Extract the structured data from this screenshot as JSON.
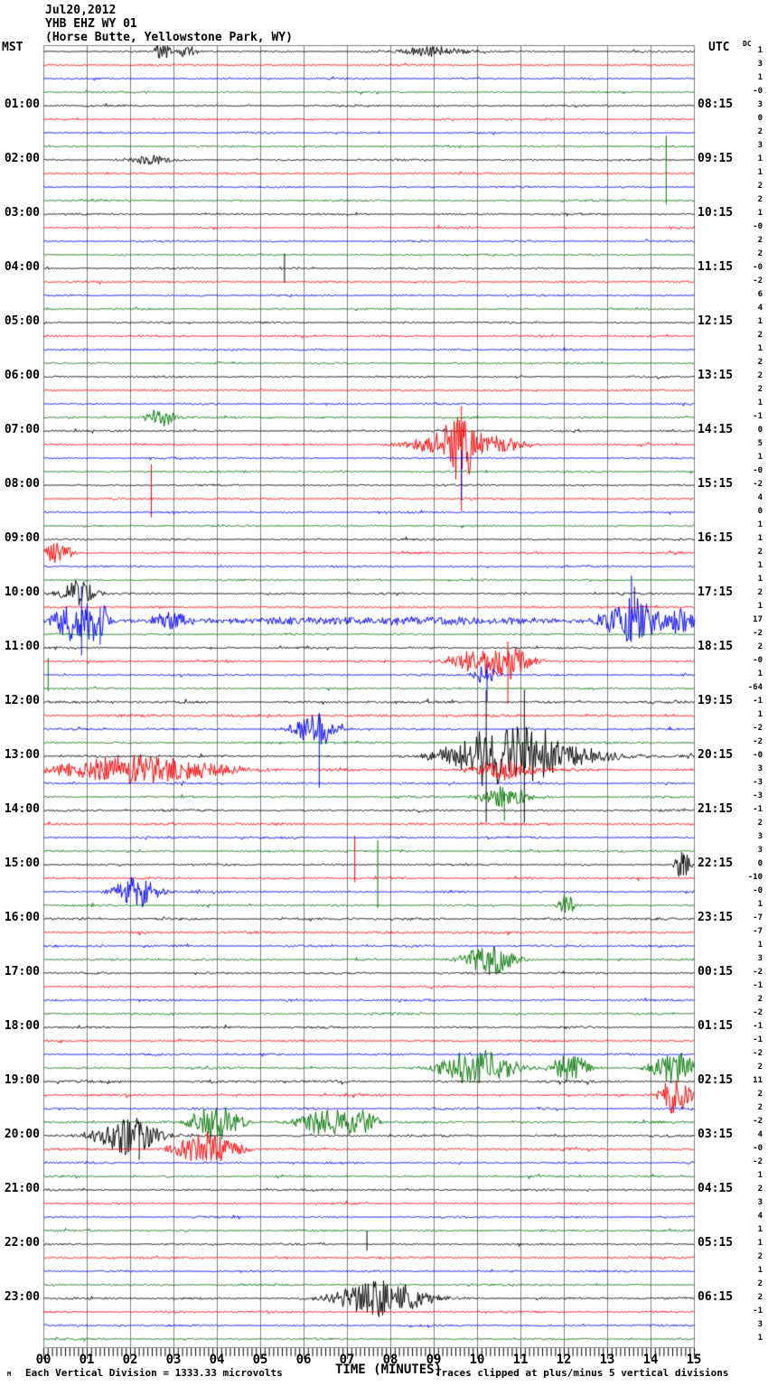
{
  "header": {
    "date": "Jul20,2012",
    "station": "YHB EHZ WY 01",
    "location": "(Horse Butte, Yellowstone Park, WY)"
  },
  "corners": {
    "left_timezone": "MST",
    "right_timezone": "UTC",
    "dc_header": "DC"
  },
  "footer": {
    "mark": "M",
    "division_note": "Each Vertical Division = 1333.33 microvolts",
    "axis_title": "TIME (MINUTES)",
    "clip_note": "Traces clipped at plus/minus 5 vertical divisions"
  },
  "left_time_labels": [
    "01:00",
    "02:00",
    "03:00",
    "04:00",
    "05:00",
    "06:00",
    "07:00",
    "08:00",
    "09:00",
    "10:00",
    "11:00",
    "12:00",
    "13:00",
    "14:00",
    "15:00",
    "16:00",
    "17:00",
    "18:00",
    "19:00",
    "20:00",
    "21:00",
    "22:00",
    "23:00"
  ],
  "right_time_labels": [
    "08:15",
    "09:15",
    "10:15",
    "11:15",
    "12:15",
    "13:15",
    "14:15",
    "15:15",
    "16:15",
    "17:15",
    "18:15",
    "19:15",
    "20:15",
    "21:15",
    "22:15",
    "23:15",
    "00:15",
    "01:15",
    "02:15",
    "03:15",
    "04:15",
    "05:15",
    "06:15"
  ],
  "dc_values": [
    "1",
    "3",
    "1",
    "-0",
    "3",
    "0",
    "2",
    "3",
    "1",
    "1",
    "2",
    "2",
    "1",
    "-0",
    "2",
    "2",
    "-0",
    "-2",
    "6",
    "4",
    "1",
    "2",
    "1",
    "2",
    "2",
    "2",
    "1",
    "-1",
    "0",
    "5",
    "1",
    "-0",
    "-2",
    "4",
    "0",
    "1",
    "1",
    "2",
    "1",
    "1",
    "2",
    "1",
    "17",
    "-2",
    "2",
    "-0",
    "1",
    "-64",
    "-1",
    "1",
    "-2",
    "-2",
    "-0",
    "3",
    "-3",
    "-3",
    "-1",
    "2",
    "3",
    "3",
    "0",
    "-10",
    "-0",
    "1",
    "-7",
    "-7",
    "1",
    "3",
    "-2",
    "-1",
    "2",
    "-2",
    "-1",
    "-1",
    "-2",
    "2",
    "11",
    "2",
    "2",
    "-2",
    "4",
    "-0",
    "-2",
    "1",
    "2",
    "3",
    "4",
    "1",
    "1",
    "2",
    "1",
    "2",
    "2",
    "-1",
    "3",
    "1"
  ],
  "axis_minutes": [
    "00",
    "01",
    "02",
    "03",
    "04",
    "05",
    "06",
    "07",
    "08",
    "09",
    "10",
    "11",
    "12",
    "13",
    "14",
    "15"
  ],
  "colors": {
    "trace_cycle": [
      "#000000",
      "#ff0000",
      "#0000ff",
      "#007700"
    ],
    "grid": "#808080",
    "background": "#ffffff"
  },
  "chart_data": {
    "type": "line",
    "subtype": "helicorder-seismogram",
    "title": "YHB EHZ WY 01 (Horse Butte, Yellowstone Park, WY)",
    "date": "Jul20,2012",
    "xlabel": "TIME (MINUTES)",
    "x_range": [
      0,
      15
    ],
    "minutes_per_line": 15,
    "lines_per_hour": 4,
    "total_lines": 96,
    "left_timezone": "MST",
    "right_timezone": "UTC",
    "clip_divisions": 5,
    "microvolts_per_division": 1333.33,
    "grid": true,
    "events": [
      {
        "trace": 0,
        "type": "burst",
        "minute": 2.72,
        "amp": 0.9,
        "width": 0.12
      },
      {
        "trace": 0,
        "type": "burst",
        "minute": 3.3,
        "amp": 0.55,
        "width": 0.15
      },
      {
        "trace": 0,
        "type": "burst",
        "minute": 9.0,
        "amp": 0.35,
        "width": 0.6
      },
      {
        "trace": 8,
        "type": "burst",
        "minute": 2.5,
        "amp": 0.4,
        "width": 0.3
      },
      {
        "trace": 11,
        "type": "spike",
        "minute": 14.35,
        "up": 4.9,
        "down": 0.3
      },
      {
        "trace": 16,
        "type": "spike",
        "minute": 5.55,
        "up": 1.1,
        "down": 1.1
      },
      {
        "trace": 27,
        "type": "burst",
        "minute": 2.7,
        "amp": 0.7,
        "width": 0.25
      },
      {
        "trace": 29,
        "type": "burst",
        "minute": 9.62,
        "amp": 2.2,
        "width": 0.3
      },
      {
        "trace": 29,
        "type": "burst",
        "minute": 9.1,
        "amp": 0.8,
        "width": 0.5
      },
      {
        "trace": 29,
        "type": "burst",
        "minute": 10.4,
        "amp": 0.7,
        "width": 0.5
      },
      {
        "trace": 29,
        "type": "spike",
        "minute": 9.63,
        "up": 2.9,
        "down": 5
      },
      {
        "trace": 30,
        "type": "spike",
        "minute": 9.63,
        "up": 0.6,
        "down": 3.2
      },
      {
        "trace": 33,
        "type": "spike",
        "minute": 2.48,
        "up": 2.6,
        "down": 1.4
      },
      {
        "trace": 37,
        "type": "burst",
        "minute": 0.3,
        "amp": 0.8,
        "width": 0.25
      },
      {
        "trace": 40,
        "type": "burst",
        "minute": 0.8,
        "amp": 1.0,
        "width": 0.3
      },
      {
        "trace": 40,
        "type": "spike",
        "minute": 13.62,
        "up": 0.5,
        "down": 1.3
      },
      {
        "trace": 42,
        "type": "burst",
        "minute": 0.78,
        "amp": 2.0,
        "width": 0.35
      },
      {
        "trace": 42,
        "type": "burst",
        "minute": 1.2,
        "amp": 1.0,
        "width": 0.25
      },
      {
        "trace": 42,
        "type": "spike",
        "minute": 0.87,
        "up": 2.6,
        "down": 2.6
      },
      {
        "trace": 42,
        "type": "spike",
        "minute": 1.3,
        "up": 1.0,
        "down": 1.8
      },
      {
        "trace": 42,
        "type": "burst",
        "minute": 2.9,
        "amp": 0.6,
        "width": 0.3
      },
      {
        "trace": 42,
        "type": "burst",
        "minute": 8.0,
        "amp": 0.3,
        "width": 4.0
      },
      {
        "trace": 42,
        "type": "burst",
        "minute": 13.5,
        "amp": 1.9,
        "width": 0.4
      },
      {
        "trace": 42,
        "type": "spike",
        "minute": 13.55,
        "up": 3.4,
        "down": 1.6
      },
      {
        "trace": 42,
        "type": "burst",
        "minute": 14.6,
        "amp": 1.0,
        "width": 0.4
      },
      {
        "trace": 45,
        "type": "burst",
        "minute": 10.65,
        "amp": 1.5,
        "width": 0.4
      },
      {
        "trace": 45,
        "type": "burst",
        "minute": 9.8,
        "amp": 0.7,
        "width": 0.4
      },
      {
        "trace": 45,
        "type": "spike",
        "minute": 10.7,
        "up": 1.5,
        "down": 3.2
      },
      {
        "trace": 46,
        "type": "burst",
        "minute": 10.2,
        "amp": 0.7,
        "width": 0.2
      },
      {
        "trace": 46,
        "type": "spike",
        "minute": 10.22,
        "up": 0.8,
        "down": 2.0
      },
      {
        "trace": 47,
        "type": "spike",
        "minute": 0.1,
        "up": 2.3,
        "down": 0.2
      },
      {
        "trace": 50,
        "type": "burst",
        "minute": 6.3,
        "amp": 1.3,
        "width": 0.35
      },
      {
        "trace": 50,
        "type": "spike",
        "minute": 6.35,
        "up": 1.2,
        "down": 4.4
      },
      {
        "trace": 52,
        "type": "burst",
        "minute": 10.55,
        "amp": 2.4,
        "width": 0.8
      },
      {
        "trace": 52,
        "type": "burst",
        "minute": 11.3,
        "amp": 1.0,
        "width": 1.2
      },
      {
        "trace": 52,
        "type": "spike",
        "minute": 10.2,
        "up": 5,
        "down": 5
      },
      {
        "trace": 52,
        "type": "spike",
        "minute": 11.08,
        "up": 5,
        "down": 5
      },
      {
        "trace": 53,
        "type": "burst",
        "minute": 2.2,
        "amp": 1.1,
        "width": 1.3
      },
      {
        "trace": 53,
        "type": "burst",
        "minute": 10.6,
        "amp": 0.8,
        "width": 0.5
      },
      {
        "trace": 55,
        "type": "burst",
        "minute": 10.6,
        "amp": 0.9,
        "width": 0.4
      },
      {
        "trace": 55,
        "type": "spike",
        "minute": 10.62,
        "up": 0.4,
        "down": 1.8
      },
      {
        "trace": 60,
        "type": "burst",
        "minute": 14.73,
        "amp": 1.2,
        "width": 0.12
      },
      {
        "trace": 60,
        "type": "spike",
        "minute": 14.75,
        "up": 0.8,
        "down": 0.8
      },
      {
        "trace": 61,
        "type": "spike",
        "minute": 7.17,
        "up": 3.2,
        "down": 0.3
      },
      {
        "trace": 62,
        "type": "burst",
        "minute": 2.15,
        "amp": 1.2,
        "width": 0.35
      },
      {
        "trace": 63,
        "type": "spike",
        "minute": 7.7,
        "up": 4.9,
        "down": 0.2
      },
      {
        "trace": 63,
        "type": "burst",
        "minute": 12.05,
        "amp": 0.9,
        "width": 0.12
      },
      {
        "trace": 67,
        "type": "burst",
        "minute": 10.3,
        "amp": 1.2,
        "width": 0.4
      },
      {
        "trace": 75,
        "type": "burst",
        "minute": 10.0,
        "amp": 1.4,
        "width": 0.6
      },
      {
        "trace": 75,
        "type": "burst",
        "minute": 12.15,
        "amp": 1.1,
        "width": 0.3
      },
      {
        "trace": 75,
        "type": "burst",
        "minute": 14.6,
        "amp": 1.2,
        "width": 0.4
      },
      {
        "trace": 77,
        "type": "burst",
        "minute": 14.55,
        "amp": 1.4,
        "width": 0.25
      },
      {
        "trace": 79,
        "type": "burst",
        "minute": 3.95,
        "amp": 1.4,
        "width": 0.4
      },
      {
        "trace": 79,
        "type": "burst",
        "minute": 6.55,
        "amp": 1.0,
        "width": 0.5
      },
      {
        "trace": 79,
        "type": "burst",
        "minute": 7.35,
        "amp": 1.0,
        "width": 0.25
      },
      {
        "trace": 80,
        "type": "burst",
        "minute": 1.95,
        "amp": 1.5,
        "width": 0.5
      },
      {
        "trace": 80,
        "type": "spike",
        "minute": 2.2,
        "up": 0.8,
        "down": 1.8
      },
      {
        "trace": 81,
        "type": "burst",
        "minute": 3.75,
        "amp": 1.3,
        "width": 0.5
      },
      {
        "trace": 88,
        "type": "spike",
        "minute": 7.45,
        "up": 1.0,
        "down": 0.5
      },
      {
        "trace": 92,
        "type": "burst",
        "minute": 7.75,
        "amp": 1.4,
        "width": 0.7
      }
    ],
    "noise_levels": {
      "29": 1.1,
      "37": 1.05,
      "40": 1.1,
      "41": 1.1,
      "42": 1.25,
      "44": 1.1,
      "45": 1.15,
      "46": 1.05,
      "48": 1.35,
      "49": 1.55,
      "50": 1.15,
      "51": 1.1,
      "52": 1.3,
      "53": 1.5,
      "54": 1.1,
      "55": 1.15,
      "56": 1.2,
      "57": 1.3,
      "58": 1.15,
      "59": 1.1,
      "60": 1.1,
      "61": 1.1,
      "62": 1.1,
      "63": 1.1,
      "64": 1.3,
      "65": 1.35,
      "66": 1.2,
      "67": 1.15,
      "68": 1.15,
      "69": 1.1,
      "70": 1.1,
      "71": 1.1,
      "72": 1.15,
      "73": 1.1,
      "74": 1.1,
      "75": 1.25,
      "76": 1.4,
      "77": 1.2,
      "78": 1.15,
      "79": 1.25,
      "80": 1.25,
      "81": 1.25,
      "82": 1.1,
      "83": 1.1,
      "84": 1.05,
      "85": 1.05,
      "86": 1.05,
      "87": 1.05,
      "88": 1.05,
      "89": 1.05,
      "90": 1.05,
      "91": 1.05,
      "92": 1.2,
      "93": 1.15,
      "94": 1.1,
      "95": 1.05
    }
  }
}
